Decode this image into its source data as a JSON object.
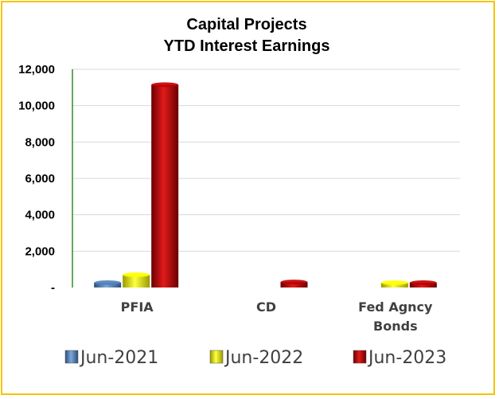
{
  "chart_data": {
    "type": "bar",
    "title": [
      "Capital Projects",
      "YTD Interest Earnings"
    ],
    "categories": [
      [
        "PFIA"
      ],
      [
        "CD"
      ],
      [
        "Fed Agncy",
        "Bonds"
      ]
    ],
    "series": [
      {
        "name": "Jun-2021",
        "color": "#4f81bd",
        "values": [
          230,
          0,
          0
        ]
      },
      {
        "name": "Jun-2022",
        "color": "#ffff00",
        "values": [
          700,
          0,
          220
        ]
      },
      {
        "name": "Jun-2023",
        "color": "#c00000",
        "values": [
          11150,
          300,
          160
        ]
      }
    ],
    "ylim": [
      0,
      12000
    ],
    "yticks": [
      0,
      2000,
      4000,
      6000,
      8000,
      10000,
      12000
    ],
    "ytick_labels": [
      "-",
      "2,000",
      "4,000",
      "6,000",
      "8,000",
      "10,000",
      "12,000"
    ],
    "grid": true,
    "legend_position": "bottom",
    "axis_color": "#2e8b2e"
  }
}
